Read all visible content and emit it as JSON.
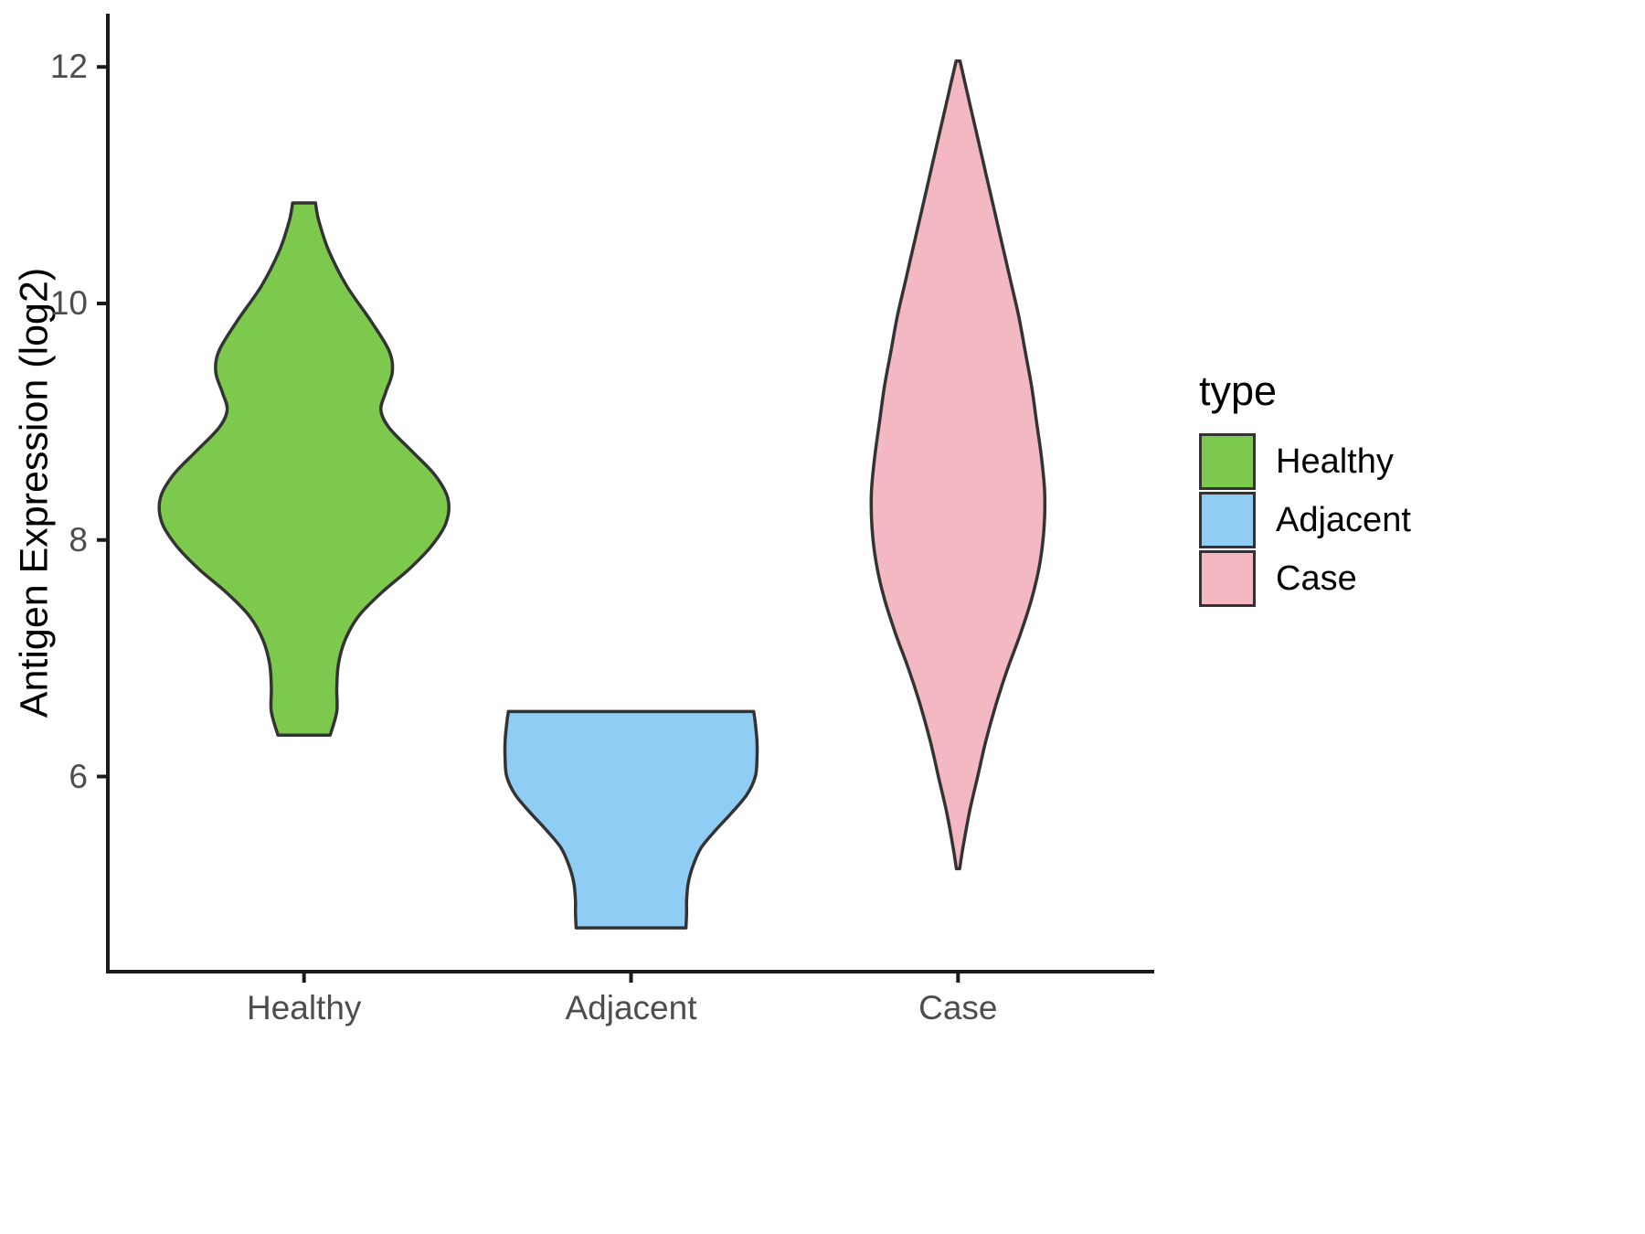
{
  "chart_data": {
    "type": "violin",
    "title": "",
    "xlabel": "",
    "ylabel": "Antigen Expression (log2)",
    "categories": [
      "Healthy",
      "Adjacent",
      "Case"
    ],
    "y_ticks": [
      6,
      8,
      10,
      12
    ],
    "ylim": [
      4.35,
      12.45
    ],
    "grid": false,
    "legend": {
      "title": "type",
      "position": "right",
      "entries": [
        {
          "label": "Healthy",
          "color": "#7DC94E"
        },
        {
          "label": "Adjacent",
          "color": "#8FCDF4"
        },
        {
          "label": "Case",
          "color": "#F4B8C3"
        }
      ]
    },
    "series": [
      {
        "name": "Healthy",
        "fill": "#7DC94E",
        "outline": "#333333",
        "y_min": 6.35,
        "y_max": 10.85,
        "peak_y": 8.35,
        "profile": [
          [
            10.85,
            0.035
          ],
          [
            10.7,
            0.045
          ],
          [
            10.45,
            0.075
          ],
          [
            10.15,
            0.13
          ],
          [
            9.85,
            0.205
          ],
          [
            9.6,
            0.26
          ],
          [
            9.42,
            0.27
          ],
          [
            9.25,
            0.25
          ],
          [
            9.1,
            0.235
          ],
          [
            8.95,
            0.26
          ],
          [
            8.75,
            0.33
          ],
          [
            8.55,
            0.4
          ],
          [
            8.35,
            0.44
          ],
          [
            8.15,
            0.435
          ],
          [
            7.95,
            0.39
          ],
          [
            7.75,
            0.32
          ],
          [
            7.55,
            0.235
          ],
          [
            7.35,
            0.165
          ],
          [
            7.15,
            0.125
          ],
          [
            6.95,
            0.105
          ],
          [
            6.75,
            0.1
          ],
          [
            6.55,
            0.1
          ],
          [
            6.35,
            0.08
          ]
        ]
      },
      {
        "name": "Adjacent",
        "fill": "#8FCDF4",
        "outline": "#333333",
        "y_min": 4.72,
        "y_max": 6.55,
        "peak_y": 6.2,
        "profile": [
          [
            6.55,
            0.375
          ],
          [
            6.45,
            0.38
          ],
          [
            6.3,
            0.385
          ],
          [
            6.15,
            0.385
          ],
          [
            6.0,
            0.38
          ],
          [
            5.85,
            0.355
          ],
          [
            5.7,
            0.31
          ],
          [
            5.55,
            0.26
          ],
          [
            5.4,
            0.215
          ],
          [
            5.25,
            0.19
          ],
          [
            5.1,
            0.175
          ],
          [
            4.95,
            0.17
          ],
          [
            4.85,
            0.17
          ],
          [
            4.72,
            0.168
          ]
        ]
      },
      {
        "name": "Case",
        "fill": "#F4B8C3",
        "outline": "#333333",
        "y_min": 5.22,
        "y_max": 12.05,
        "peak_y": 8.3,
        "profile": [
          [
            12.05,
            0.006
          ],
          [
            11.7,
            0.035
          ],
          [
            11.4,
            0.06
          ],
          [
            11.1,
            0.085
          ],
          [
            10.8,
            0.11
          ],
          [
            10.5,
            0.135
          ],
          [
            10.2,
            0.16
          ],
          [
            9.9,
            0.185
          ],
          [
            9.6,
            0.205
          ],
          [
            9.3,
            0.225
          ],
          [
            9.0,
            0.24
          ],
          [
            8.7,
            0.255
          ],
          [
            8.4,
            0.265
          ],
          [
            8.1,
            0.263
          ],
          [
            7.8,
            0.25
          ],
          [
            7.5,
            0.225
          ],
          [
            7.2,
            0.19
          ],
          [
            6.9,
            0.15
          ],
          [
            6.6,
            0.115
          ],
          [
            6.3,
            0.085
          ],
          [
            6.0,
            0.06
          ],
          [
            5.7,
            0.035
          ],
          [
            5.4,
            0.015
          ],
          [
            5.22,
            0.005
          ]
        ]
      }
    ]
  },
  "style": {
    "background": "#FFFFFF",
    "axis_line_color": "#1A1A1A",
    "tick_label_color": "#4D4D4D",
    "title_color": "#000000",
    "violin_stroke_width": 3.5
  }
}
